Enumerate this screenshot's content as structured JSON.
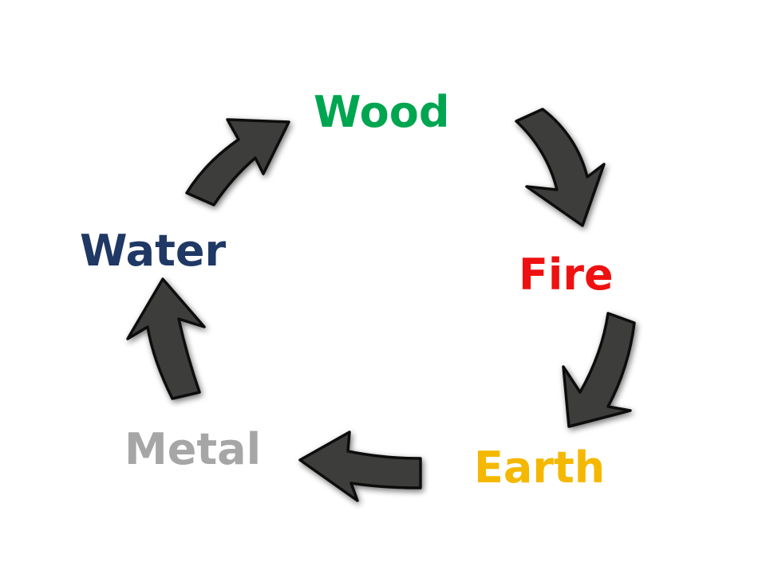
{
  "diagram": {
    "nodes": [
      {
        "id": "wood",
        "label": "Wood",
        "color": "#00a550"
      },
      {
        "id": "fire",
        "label": "Fire",
        "color": "#ee1111"
      },
      {
        "id": "earth",
        "label": "Earth",
        "color": "#f5b800"
      },
      {
        "id": "metal",
        "label": "Metal",
        "color": "#a6a6a6"
      },
      {
        "id": "water",
        "label": "Water",
        "color": "#1f3864"
      }
    ],
    "edges": [
      {
        "from": "wood",
        "to": "fire"
      },
      {
        "from": "fire",
        "to": "earth"
      },
      {
        "from": "earth",
        "to": "metal"
      },
      {
        "from": "metal",
        "to": "water"
      },
      {
        "from": "water",
        "to": "wood"
      }
    ],
    "arrow_color": "#3e3e3b"
  }
}
